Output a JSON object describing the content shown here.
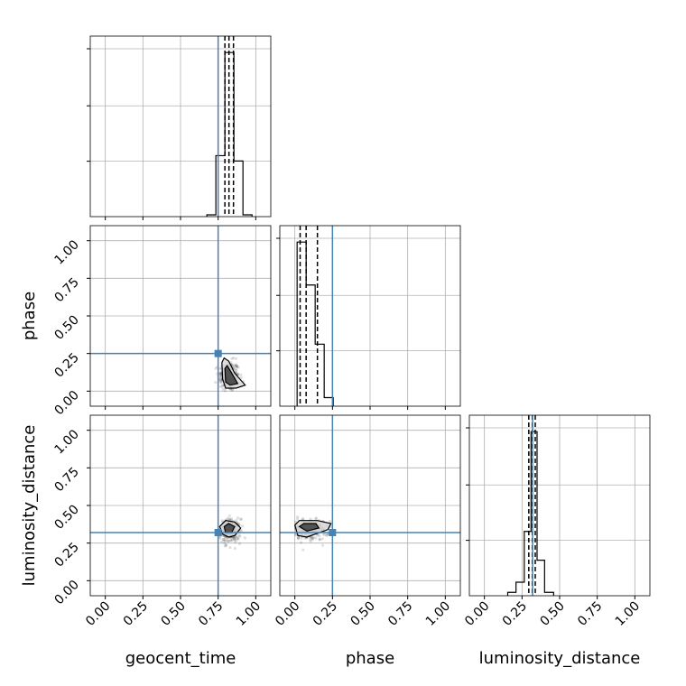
{
  "chart_data": {
    "type": "corner",
    "parameters": [
      "geocent_time",
      "phase",
      "luminosity_distance"
    ],
    "axis_labels": [
      "geocent_time",
      "phase",
      "luminosity_distance"
    ],
    "tick_labels": [
      "0.00",
      "0.25",
      "0.50",
      "0.75",
      "1.00"
    ],
    "axis_range": [
      -0.1,
      1.1
    ],
    "grid": true,
    "truths": {
      "geocent_time": 0.75,
      "phase": 0.25,
      "luminosity_distance": 0.32
    },
    "truth_color": "#4682b4",
    "histograms": {
      "geocent_time": {
        "bin_edges": [
          0.675,
          0.735,
          0.795,
          0.855,
          0.915,
          0.975
        ],
        "counts": [
          2,
          68,
          183,
          62,
          2
        ],
        "quantiles": [
          0.795,
          0.822,
          0.852
        ]
      },
      "phase": {
        "bin_edges": [
          0.015,
          0.075,
          0.135,
          0.195,
          0.255
        ],
        "counts": [
          172,
          127,
          65,
          9
        ],
        "quantiles": [
          0.035,
          0.075,
          0.15
        ]
      },
      "luminosity_distance": {
        "bin_edges": [
          0.155,
          0.21,
          0.265,
          0.31,
          0.35,
          0.4,
          0.46
        ],
        "counts": [
          2,
          8,
          38,
          97,
          21,
          2
        ],
        "quantiles": [
          0.295,
          0.318,
          0.338
        ]
      }
    },
    "scatter": {
      "phase_vs_geocent_time": {
        "center": [
          0.82,
          0.1
        ],
        "spread": [
          0.035,
          0.05
        ],
        "x_range": [
          0.73,
          0.95
        ],
        "y_range": [
          0.0,
          0.25
        ]
      },
      "luminosity_distance_vs_geocent_time": {
        "center": [
          0.83,
          0.33
        ],
        "spread": [
          0.035,
          0.04
        ],
        "x_range": [
          0.73,
          0.97
        ],
        "y_range": [
          0.18,
          0.45
        ]
      },
      "luminosity_distance_vs_phase": {
        "center": [
          0.09,
          0.34
        ],
        "spread": [
          0.07,
          0.035
        ],
        "x_range": [
          0.0,
          0.26
        ],
        "y_range": [
          0.18,
          0.45
        ]
      }
    },
    "contours": {
      "phase_vs_geocent_time": [
        [
          [
            0.775,
            0.19
          ],
          [
            0.79,
            0.22
          ],
          [
            0.82,
            0.2
          ],
          [
            0.86,
            0.12
          ],
          [
            0.93,
            0.04
          ],
          [
            0.87,
            0.02
          ],
          [
            0.8,
            0.02
          ],
          [
            0.78,
            0.08
          ],
          [
            0.775,
            0.19
          ]
        ],
        [
          [
            0.795,
            0.15
          ],
          [
            0.81,
            0.17
          ],
          [
            0.84,
            0.12
          ],
          [
            0.88,
            0.05
          ],
          [
            0.83,
            0.04
          ],
          [
            0.8,
            0.06
          ],
          [
            0.795,
            0.15
          ]
        ]
      ],
      "luminosity_distance_vs_geocent_time": [
        [
          [
            0.76,
            0.36
          ],
          [
            0.8,
            0.4
          ],
          [
            0.86,
            0.39
          ],
          [
            0.9,
            0.35
          ],
          [
            0.86,
            0.3
          ],
          [
            0.82,
            0.29
          ],
          [
            0.78,
            0.31
          ],
          [
            0.76,
            0.36
          ]
        ],
        [
          [
            0.79,
            0.36
          ],
          [
            0.82,
            0.38
          ],
          [
            0.86,
            0.36
          ],
          [
            0.84,
            0.32
          ],
          [
            0.8,
            0.32
          ],
          [
            0.79,
            0.36
          ]
        ]
      ],
      "luminosity_distance_vs_phase": [
        [
          [
            0.0,
            0.37
          ],
          [
            0.03,
            0.4
          ],
          [
            0.15,
            0.4
          ],
          [
            0.24,
            0.38
          ],
          [
            0.22,
            0.34
          ],
          [
            0.08,
            0.29
          ],
          [
            0.02,
            0.3
          ],
          [
            0.0,
            0.37
          ]
        ],
        [
          [
            0.03,
            0.36
          ],
          [
            0.06,
            0.38
          ],
          [
            0.14,
            0.38
          ],
          [
            0.16,
            0.35
          ],
          [
            0.08,
            0.33
          ],
          [
            0.03,
            0.36
          ]
        ]
      ]
    }
  }
}
